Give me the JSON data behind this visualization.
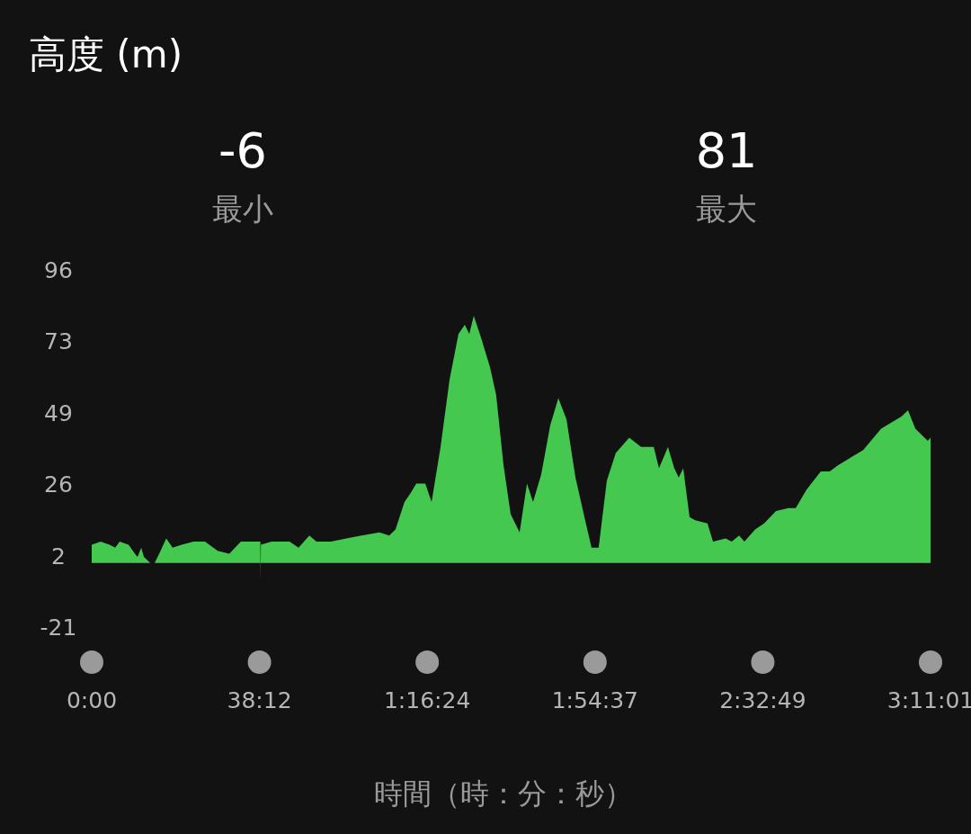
{
  "chart_data": {
    "type": "area",
    "title": "高度 (m)",
    "xlabel": "時間（時：分：秒）",
    "annotations": [
      "-6",
      "最小",
      "81",
      "最大"
    ],
    "xlim": [
      0,
      191.017
    ],
    "ylim": [
      -21,
      96
    ],
    "xticks": [
      {
        "value": 0,
        "label": "0:00"
      },
      {
        "value": 38.2,
        "label": "38:12"
      },
      {
        "value": 76.4,
        "label": "1:16:24"
      },
      {
        "value": 114.617,
        "label": "1:54:37"
      },
      {
        "value": 152.817,
        "label": "2:32:49"
      },
      {
        "value": 191.017,
        "label": "3:11:01"
      }
    ],
    "yticks": [
      {
        "value": -21,
        "label": "-21"
      },
      {
        "value": 2.4,
        "label": "2"
      },
      {
        "value": 25.8,
        "label": "26"
      },
      {
        "value": 49.2,
        "label": "49"
      },
      {
        "value": 72.6,
        "label": "73"
      },
      96
    ],
    "grid": false,
    "series": [
      {
        "color": "#45c850",
        "x": [
          0,
          2.04,
          4.08,
          5.34,
          6.36,
          8.4,
          9.84,
          10.44,
          11.28,
          11.88,
          13.32,
          14.34,
          15.36,
          16.98,
          18.42,
          20.46,
          23.16,
          25.8,
          28.68,
          31.32,
          33.96,
          37.44,
          38.4,
          38.46,
          38.52,
          40.92,
          45.06,
          47.1,
          49.56,
          51.18,
          54.48,
          57.96,
          61.44,
          65.52,
          67.74,
          69.18,
          71.22,
          72.66,
          73.92,
          75.96,
          77.4,
          79.44,
          81.48,
          83.52,
          84.96,
          85.98,
          87,
          88.62,
          90.72,
          92.1,
          93.78,
          95.4,
          97.44,
          99.12,
          100.5,
          102.36,
          104.4,
          106.26,
          108.12,
          110.16,
          112.2,
          113.82,
          115.44,
          117.3,
          119.34,
          122.4,
          125.1,
          127.98,
          129.18,
          131.22,
          132.66,
          133.68,
          134.7,
          136.14,
          137.4,
          140.22,
          141.48,
          144.36,
          145.74,
          147.42,
          148.62,
          151.08,
          153.12,
          155.82,
          158.64,
          160.32,
          162.78,
          166.02,
          168.06,
          169.92,
          172.2,
          175.68,
          179.76,
          184.44,
          185.88,
          187.56,
          190.38,
          191.017
        ],
        "values": [
          6,
          7,
          6,
          5,
          7,
          6,
          3,
          2,
          5,
          2,
          0,
          0,
          3,
          8,
          5,
          6,
          7,
          7,
          4,
          3,
          7,
          7,
          7,
          -6,
          6,
          7,
          7,
          5,
          9,
          7,
          7,
          8,
          9,
          10,
          9,
          11,
          20,
          23,
          26,
          26,
          20,
          38,
          60,
          75,
          78,
          75,
          81,
          74,
          64,
          55,
          32,
          16,
          10,
          26,
          20,
          29,
          45,
          54,
          47,
          28,
          15,
          5,
          5,
          27,
          36,
          41,
          38,
          38,
          31,
          38,
          31,
          28,
          31,
          15,
          14,
          13,
          7,
          8,
          7,
          9,
          7,
          11,
          13,
          17,
          18,
          18,
          24,
          30,
          30,
          32,
          34,
          37,
          44,
          48,
          50,
          44,
          40,
          41
        ]
      }
    ]
  }
}
